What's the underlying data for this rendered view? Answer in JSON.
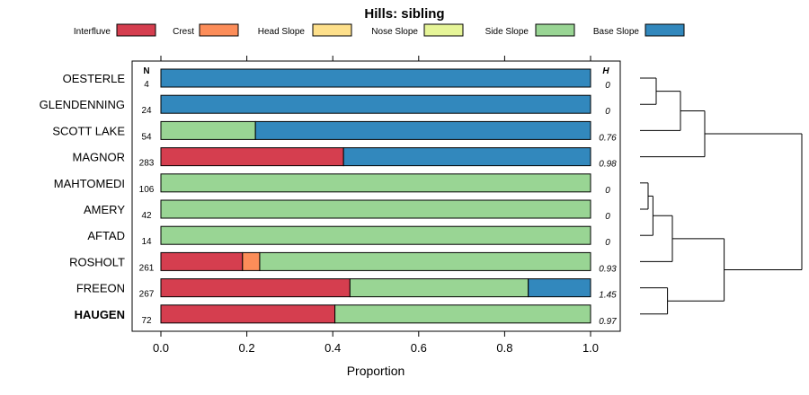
{
  "chart_data": {
    "type": "bar",
    "stacked": true,
    "orientation": "horizontal",
    "title": "Hills: sibling",
    "xlabel": "Proportion",
    "xlim": [
      0,
      1
    ],
    "xticks": [
      "0.0",
      "0.2",
      "0.4",
      "0.6",
      "0.8",
      "1.0"
    ],
    "xtick_values": [
      0,
      0.2,
      0.4,
      0.6,
      0.8,
      1.0
    ],
    "n_header": "N",
    "h_header": "H",
    "legend_position": "top",
    "series": [
      {
        "name": "Interfluve",
        "color": "#d53e4f"
      },
      {
        "name": "Crest",
        "color": "#fc8d59"
      },
      {
        "name": "Head Slope",
        "color": "#fee08b"
      },
      {
        "name": "Nose Slope",
        "color": "#e6f598"
      },
      {
        "name": "Side Slope",
        "color": "#99d594"
      },
      {
        "name": "Base Slope",
        "color": "#3288bd"
      }
    ],
    "rows": [
      {
        "label": "OESTERLE",
        "n": "4",
        "h": "0",
        "bold": false,
        "values": [
          0,
          0,
          0,
          0,
          0,
          1.0
        ]
      },
      {
        "label": "GLENDENNING",
        "n": "24",
        "h": "0",
        "bold": false,
        "values": [
          0,
          0,
          0,
          0,
          0,
          1.0
        ]
      },
      {
        "label": "SCOTT LAKE",
        "n": "54",
        "h": "0.76",
        "bold": false,
        "values": [
          0,
          0,
          0,
          0,
          0.22,
          0.78
        ]
      },
      {
        "label": "MAGNOR",
        "n": "283",
        "h": "0.98",
        "bold": false,
        "values": [
          0.425,
          0,
          0,
          0,
          0,
          0.575
        ]
      },
      {
        "label": "MAHTOMEDI",
        "n": "106",
        "h": "0",
        "bold": false,
        "values": [
          0,
          0,
          0,
          0,
          1.0,
          0
        ]
      },
      {
        "label": "AMERY",
        "n": "42",
        "h": "0",
        "bold": false,
        "values": [
          0,
          0,
          0,
          0,
          1.0,
          0
        ]
      },
      {
        "label": "AFTAD",
        "n": "14",
        "h": "0",
        "bold": false,
        "values": [
          0,
          0,
          0,
          0,
          1.0,
          0
        ]
      },
      {
        "label": "ROSHOLT",
        "n": "261",
        "h": "0.93",
        "bold": false,
        "values": [
          0.19,
          0.04,
          0,
          0,
          0.77,
          0
        ]
      },
      {
        "label": "FREEON",
        "n": "267",
        "h": "1.45",
        "bold": false,
        "values": [
          0.44,
          0,
          0,
          0,
          0.415,
          0.145
        ]
      },
      {
        "label": "HAUGEN",
        "n": "72",
        "h": "0.97",
        "bold": true,
        "values": [
          0.405,
          0,
          0,
          0,
          0.595,
          0
        ]
      }
    ],
    "dendrogram": {
      "description": "hierarchical clustering of rows",
      "merges": [
        {
          "left": "OESTERLE",
          "right": "GLENDENNING",
          "height": 0.1
        },
        {
          "left": "m0",
          "right": "SCOTT LAKE",
          "height": 0.25
        },
        {
          "left": "m1",
          "right": "MAGNOR",
          "height": 0.4
        },
        {
          "left": "MAHTOMEDI",
          "right": "AMERY",
          "height": 0.05
        },
        {
          "left": "m3",
          "right": "AFTAD",
          "height": 0.08
        },
        {
          "left": "m4",
          "right": "ROSHOLT",
          "height": 0.2
        },
        {
          "left": "FREEON",
          "right": "HAUGEN",
          "height": 0.17
        },
        {
          "left": "m5",
          "right": "m6",
          "height": 0.52
        },
        {
          "left": "m2",
          "right": "m7",
          "height": 1.0
        }
      ]
    }
  }
}
